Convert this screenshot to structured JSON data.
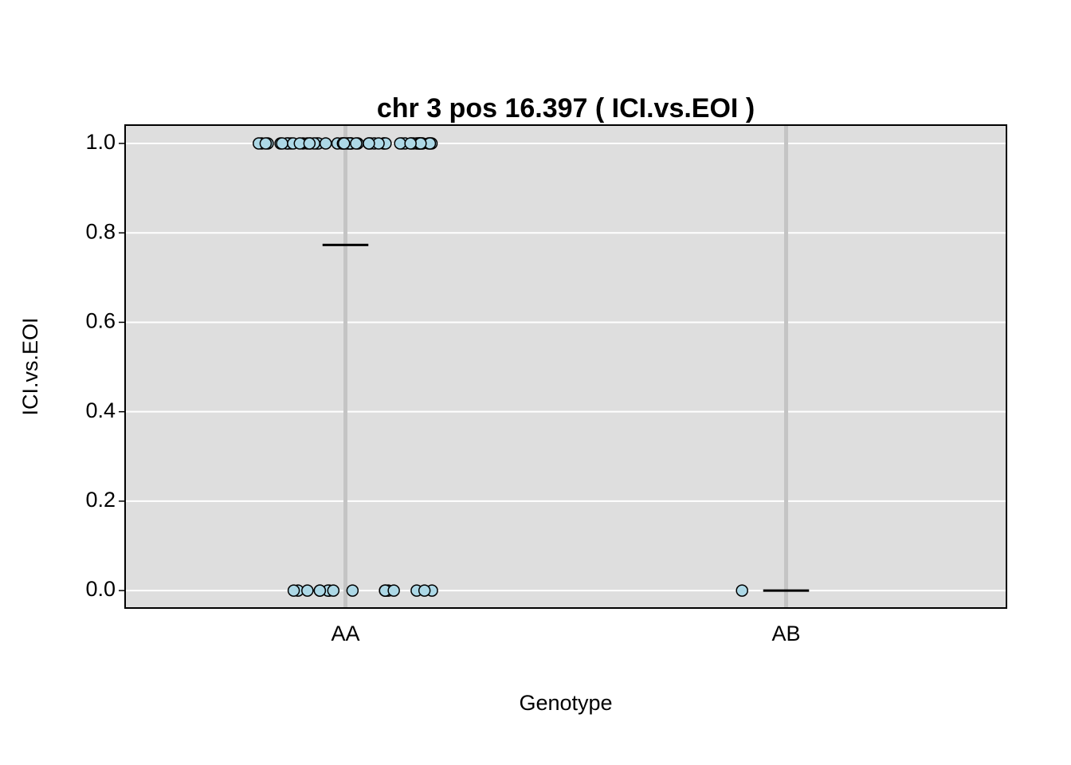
{
  "chart_data": {
    "type": "strip",
    "title": "chr 3 pos 16.397 ( ICI.vs.EOI )",
    "x_label": "Genotype",
    "y_label": "ICI.vs.EOI",
    "categories": [
      "AA",
      "AB"
    ],
    "values": [
      [
        1,
        1,
        1,
        1,
        1,
        1,
        1,
        1,
        1,
        1,
        1,
        1,
        1,
        1,
        1,
        1,
        1,
        1,
        1,
        1,
        1,
        1,
        1,
        1,
        1,
        1,
        1,
        1,
        1,
        1,
        1,
        1,
        1,
        1,
        1,
        1,
        1,
        1,
        1,
        1,
        1,
        1,
        1,
        1,
        1,
        1,
        1,
        1,
        1,
        1,
        1,
        1,
        1,
        1,
        1,
        1,
        1,
        1,
        0,
        0,
        0,
        0,
        0,
        0,
        0,
        0,
        0,
        0,
        0,
        0,
        0,
        0,
        0,
        0,
        0
      ],
      [
        0
      ]
    ],
    "means": [
      0.773,
      0
    ],
    "color": "#add8e6",
    "background": "#dedede",
    "ylim": [
      -0.039,
      1.041
    ],
    "yticks": [
      {
        "value": 0,
        "label": "0.0"
      },
      {
        "value": 0.2,
        "label": "0.2"
      },
      {
        "value": 0.4,
        "label": "0.4"
      },
      {
        "value": 0.6,
        "label": "0.6"
      },
      {
        "value": 0.8,
        "label": "0.8"
      },
      {
        "value": 1,
        "label": "1.0"
      }
    ],
    "grid": true
  }
}
